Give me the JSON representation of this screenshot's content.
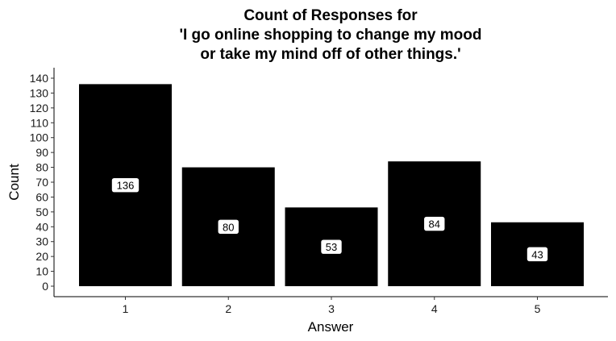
{
  "chart_data": {
    "type": "bar",
    "title_lines": [
      "Count of Responses for",
      "'I go online shopping to change my mood",
      "or take my mind off of other things.'"
    ],
    "xlabel": "Answer",
    "ylabel": "Count",
    "categories": [
      "1",
      "2",
      "3",
      "4",
      "5"
    ],
    "values": [
      136,
      80,
      53,
      84,
      43
    ],
    "data_labels": [
      "136",
      "80",
      "53",
      "84",
      "43"
    ],
    "ylim": [
      0,
      140
    ],
    "yticks": [
      "0",
      "10",
      "20",
      "30",
      "40",
      "50",
      "60",
      "70",
      "80",
      "90",
      "100",
      "110",
      "120",
      "130",
      "140"
    ],
    "bar_color": "#000000",
    "label_box_color": "#ffffff",
    "grid": false,
    "legend": "none"
  }
}
